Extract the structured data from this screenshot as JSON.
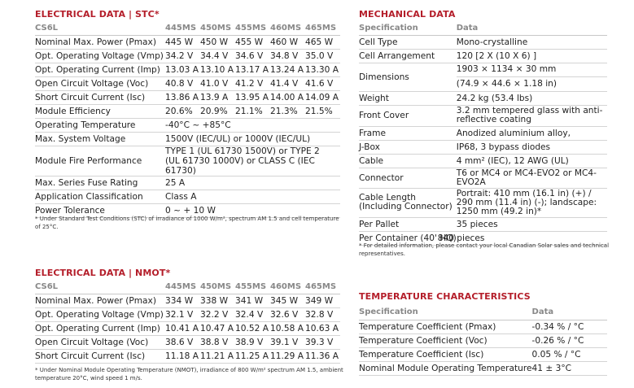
{
  "stc": {
    "title": "ELECTRICAL DATA | STC*",
    "headers": [
      "CS6L",
      "445MS",
      "450MS",
      "455MS",
      "460MS",
      "465MS"
    ],
    "rows": [
      {
        "label": "Nominal Max. Power (Pmax)",
        "values": [
          "445 W",
          "450 W",
          "455 W",
          "460 W",
          "465 W"
        ]
      },
      {
        "label": "Opt. Operating Voltage (Vmp)",
        "values": [
          "34.2 V",
          "34.4 V",
          "34.6 V",
          "34.8 V",
          "35.0 V"
        ]
      },
      {
        "label": "Opt. Operating Current (Imp)",
        "values": [
          "13.03 A",
          "13.10 A",
          "13.17 A",
          "13.24 A",
          "13.30 A"
        ]
      },
      {
        "label": "Open Circuit Voltage (Voc)",
        "values": [
          "40.8 V",
          "41.0 V",
          "41.2 V",
          "41.4 V",
          "41.6 V"
        ]
      },
      {
        "label": "Short Circuit Current (Isc)",
        "values": [
          "13.86 A",
          "13.9 A",
          "13.95 A",
          "14.00 A",
          "14.09 A"
        ]
      },
      {
        "label": "Module Efficiency",
        "values": [
          "20.6%",
          "20.9%",
          "21.1%",
          "21.3%",
          "21.5%"
        ]
      }
    ],
    "span_rows": [
      {
        "label": "Operating Temperature",
        "value": "-40°C ~ +85°C"
      },
      {
        "label": "Max. System Voltage",
        "value": "1500V (IEC/UL) or 1000V (IEC/UL)"
      },
      {
        "label": "Module Fire Performance",
        "value": "TYPE 1 (UL 61730 1500V) or TYPE 2 (UL 61730 1000V) or CLASS C (IEC 61730)"
      },
      {
        "label": "Max. Series Fuse Rating",
        "value": "25 A"
      },
      {
        "label": "Application Classification",
        "value": "Class A"
      },
      {
        "label": "Power Tolerance",
        "value": "0 ~ + 10 W"
      }
    ],
    "note": "* Under Standard Test Conditions (STC) of irradiance of 1000 W/m², spectrum AM 1.5 and cell temperature of 25°C."
  },
  "nmot": {
    "title": "ELECTRICAL DATA | NMOT*",
    "headers": [
      "CS6L",
      "445MS",
      "450MS",
      "455MS",
      "460MS",
      "465MS"
    ],
    "rows": [
      {
        "label": "Nominal Max. Power (Pmax)",
        "values": [
          "334 W",
          "338 W",
          "341 W",
          "345 W",
          "349 W"
        ]
      },
      {
        "label": "Opt. Operating Voltage (Vmp)",
        "values": [
          "32.1 V",
          "32.2 V",
          "32.4 V",
          "32.6 V",
          "32.8 V"
        ]
      },
      {
        "label": "Opt. Operating Current (Imp)",
        "values": [
          "10.41 A",
          "10.47 A",
          "10.52 A",
          "10.58 A",
          "10.63 A"
        ]
      },
      {
        "label": "Open Circuit Voltage (Voc)",
        "values": [
          "38.6 V",
          "38.8 V",
          "38.9 V",
          "39.1 V",
          "39.3 V"
        ]
      },
      {
        "label": "Short Circuit Current (Isc)",
        "values": [
          "11.18 A",
          "11.21 A",
          "11.25 A",
          "11.29 A",
          "11.36 A"
        ]
      }
    ],
    "note": "* Under Nominal Module Operating Temperature (NMOT), irradiance of 800 W/m² spectrum AM 1.5, ambient temperature 20°C, wind speed 1 m/s."
  },
  "mech": {
    "title": "MECHANICAL DATA",
    "headers": [
      "Specification",
      "Data"
    ],
    "rows": [
      {
        "label": "Cell Type",
        "value": "Mono-crystalline"
      },
      {
        "label": "Cell Arrangement",
        "value": "120 [2 X (10 X 6) ]"
      },
      {
        "label": "Dimensions",
        "value": "1903 × 1134 × 30 mm",
        "value2": "(74.9 × 44.6 × 1.18 in)"
      },
      {
        "label": "Weight",
        "value": "24.2 kg (53.4 lbs)"
      },
      {
        "label": "Front Cover",
        "value": "3.2 mm tempered glass with anti-reflective coating"
      },
      {
        "label": "Frame",
        "value": "Anodized aluminium alloy,"
      },
      {
        "label": "J-Box",
        "value": "IP68, 3 bypass diodes"
      },
      {
        "label": "Cable",
        "value": "4 mm² (IEC), 12 AWG (UL)"
      },
      {
        "label": "Connector",
        "value": "T6 or MC4 or MC4-EVO2 or MC4-EVO2A"
      },
      {
        "label": "Cable Length (Including Connector)",
        "value": "Portrait: 410 mm (16.1 in) (+) / 290 mm (11.4 in) (-); landscape: 1250 mm (49.2 in)*"
      },
      {
        "label": "Per Pallet",
        "value": "35 pieces"
      },
      {
        "label": "Per Container (40' HQ)",
        "value": "840 pieces"
      }
    ],
    "note": "* For detailed information, please contact your local Canadian Solar sales and technical representatives."
  },
  "temp": {
    "title": "TEMPERATURE CHARACTERISTICS",
    "headers": [
      "Specification",
      "Data"
    ],
    "rows": [
      {
        "label": "Temperature Coefficient (Pmax)",
        "value": "-0.34 % / °C"
      },
      {
        "label": "Temperature Coefficient (Voc)",
        "value": "-0.26 % / °C"
      },
      {
        "label": "Temperature Coefficient (Isc)",
        "value": "0.05 % / °C"
      },
      {
        "label": "Nominal Module Operating Temperature",
        "value": "41 ± 3°C"
      }
    ]
  }
}
